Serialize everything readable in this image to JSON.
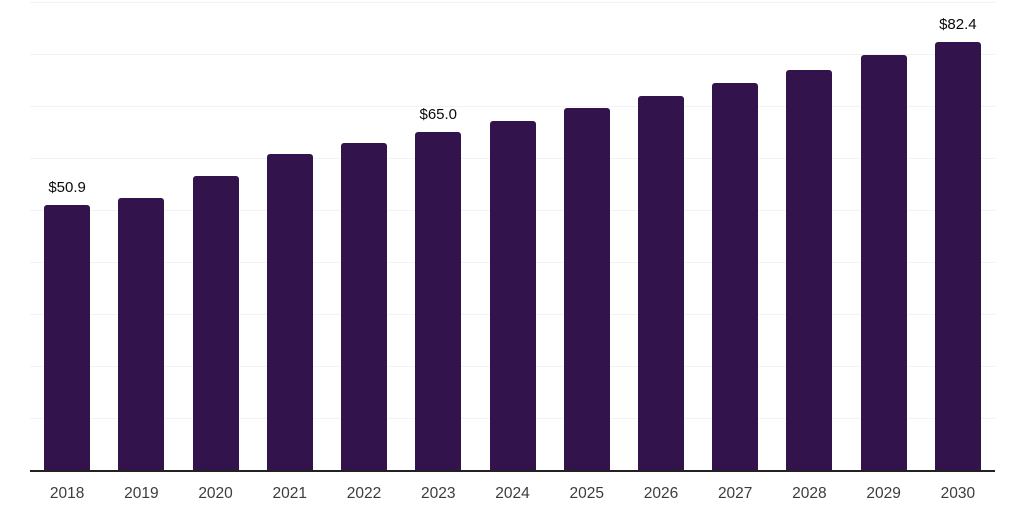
{
  "chart_data": {
    "type": "bar",
    "title": "",
    "xlabel": "",
    "ylabel": "",
    "categories": [
      "2018",
      "2019",
      "2020",
      "2021",
      "2022",
      "2023",
      "2024",
      "2025",
      "2026",
      "2027",
      "2028",
      "2029",
      "2030"
    ],
    "values": [
      50.9,
      52.3,
      56.6,
      60.8,
      62.9,
      65.0,
      67.1,
      69.6,
      72.0,
      74.4,
      77.0,
      79.9,
      82.4
    ],
    "data_labels": [
      {
        "category": "2018",
        "text": "$50.9"
      },
      {
        "category": "2023",
        "text": "$65.0"
      },
      {
        "category": "2030",
        "text": "$82.4"
      }
    ],
    "ylim": [
      0,
      90
    ],
    "grid": "horizontal",
    "grid_step": 10,
    "y_tick_labels_visible": false,
    "legend": "none",
    "colors": {
      "bar": "#32134B",
      "gridline": "#F3F3F3",
      "axis_line": "#222222",
      "tick_label": "#3C3C3C",
      "data_label": "#0A0A0A",
      "background": "#FFFFFF"
    }
  }
}
